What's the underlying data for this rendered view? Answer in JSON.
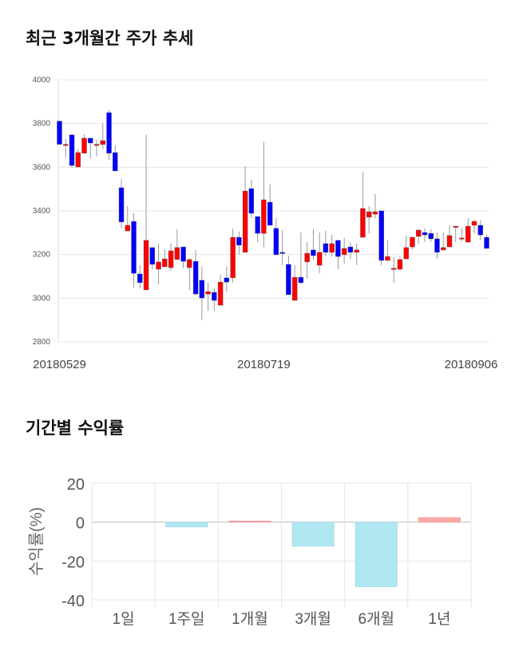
{
  "chart_data": [
    {
      "type": "candlestick",
      "title": "최근 3개월간 주가 추세",
      "ylim": [
        2800,
        4000
      ],
      "yticks": [
        "4000",
        "3800",
        "3600",
        "3400",
        "3200",
        "3000",
        "2800"
      ],
      "xtick_labels": [
        "20180529",
        "20180719",
        "20180906"
      ],
      "xtick_index": [
        0,
        33,
        69
      ],
      "colors": {
        "up": "#ff0000",
        "down": "#0000ff"
      },
      "ohlc": [
        [
          3811,
          3811,
          3705,
          3705
        ],
        [
          3705,
          3729,
          3645,
          3705
        ],
        [
          3748,
          3748,
          3598,
          3608
        ],
        [
          3601,
          3682,
          3601,
          3667
        ],
        [
          3664,
          3751,
          3664,
          3733
        ],
        [
          3733,
          3733,
          3641,
          3711
        ],
        [
          3705,
          3726,
          3649,
          3705
        ],
        [
          3704,
          3802,
          3682,
          3722
        ],
        [
          3850,
          3861,
          3634,
          3664
        ],
        [
          3667,
          3700,
          3583,
          3583
        ],
        [
          3506,
          3546,
          3320,
          3349
        ],
        [
          3308,
          3422,
          3308,
          3334
        ],
        [
          3352,
          3389,
          3049,
          3114
        ],
        [
          3111,
          3151,
          3045,
          3071
        ],
        [
          3038,
          3748,
          3038,
          3265
        ],
        [
          3232,
          3232,
          3133,
          3155
        ],
        [
          3133,
          3250,
          3063,
          3166
        ],
        [
          3144,
          3224,
          3144,
          3180
        ],
        [
          3140,
          3250,
          3126,
          3217
        ],
        [
          3177,
          3316,
          3177,
          3232
        ],
        [
          3235,
          3235,
          3137,
          3169
        ],
        [
          3140,
          3184,
          3038,
          3177
        ],
        [
          3169,
          3221,
          3019,
          3019
        ],
        [
          3082,
          3147,
          2899,
          3001
        ],
        [
          3019,
          3071,
          2942,
          3030
        ],
        [
          3027,
          3045,
          2942,
          2990
        ],
        [
          2968,
          3107,
          2968,
          3074
        ],
        [
          3093,
          3147,
          3030,
          3074
        ],
        [
          3093,
          3320,
          3071,
          3279
        ],
        [
          3279,
          3305,
          3199,
          3243
        ],
        [
          3210,
          3605,
          3210,
          3491
        ],
        [
          3502,
          3542,
          3367,
          3389
        ],
        [
          3374,
          3374,
          3257,
          3297
        ],
        [
          3297,
          3715,
          3232,
          3451
        ],
        [
          3440,
          3521,
          3334,
          3334
        ],
        [
          3320,
          3367,
          3199,
          3199
        ],
        [
          3210,
          3312,
          3151,
          3206
        ],
        [
          3155,
          3195,
          3016,
          3016
        ],
        [
          2990,
          3151,
          2990,
          3096
        ],
        [
          3096,
          3301,
          3063,
          3071
        ],
        [
          3166,
          3257,
          3089,
          3206
        ],
        [
          3221,
          3316,
          3173,
          3195
        ],
        [
          3151,
          3301,
          3114,
          3210
        ],
        [
          3250,
          3309,
          3191,
          3210
        ],
        [
          3210,
          3290,
          3191,
          3250
        ],
        [
          3265,
          3265,
          3133,
          3191
        ],
        [
          3199,
          3276,
          3158,
          3228
        ],
        [
          3235,
          3257,
          3180,
          3210
        ],
        [
          3210,
          3250,
          3151,
          3221
        ],
        [
          3279,
          3576,
          3279,
          3411
        ],
        [
          3371,
          3422,
          3297,
          3396
        ],
        [
          3385,
          3477,
          3367,
          3396
        ],
        [
          3400,
          3400,
          3151,
          3173
        ],
        [
          3173,
          3265,
          3173,
          3191
        ],
        [
          3133,
          3188,
          3071,
          3137
        ],
        [
          3133,
          3191,
          3126,
          3177
        ],
        [
          3180,
          3287,
          3180,
          3232
        ],
        [
          3235,
          3279,
          3224,
          3279
        ],
        [
          3283,
          3316,
          3250,
          3312
        ],
        [
          3301,
          3320,
          3257,
          3290
        ],
        [
          3297,
          3316,
          3257,
          3272
        ],
        [
          3272,
          3301,
          3180,
          3210
        ],
        [
          3221,
          3301,
          3217,
          3232
        ],
        [
          3235,
          3334,
          3235,
          3287
        ],
        [
          3330,
          3330,
          3257,
          3330
        ],
        [
          3276,
          3320,
          3261,
          3276
        ],
        [
          3257,
          3367,
          3257,
          3330
        ],
        [
          3334,
          3360,
          3297,
          3352
        ],
        [
          3334,
          3356,
          3265,
          3290
        ],
        [
          3279,
          3290,
          3228,
          3228
        ]
      ]
    },
    {
      "type": "bar",
      "title": "기간별 수익률",
      "ylabel": "수익률(%)",
      "ylim": [
        -40,
        20
      ],
      "yticks": [
        "20",
        "0",
        "-20",
        "-40"
      ],
      "categories": [
        "1일",
        "1주일",
        "1개월",
        "3개월",
        "6개월",
        "1년"
      ],
      "values": [
        0,
        -2.4,
        0.5,
        -12.3,
        -33.2,
        2.3
      ],
      "colors": {
        "positive": "#ffa8a8",
        "negative": "#b0e8f2"
      }
    }
  ]
}
